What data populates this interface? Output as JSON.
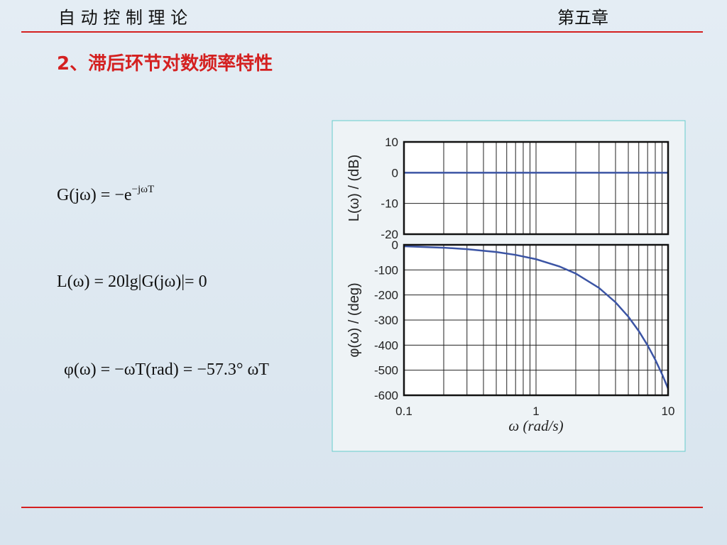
{
  "header": {
    "title": "自 动 控 制 理 论",
    "chapter": "第五章"
  },
  "section_title": "2、滞后环节对数频率特性",
  "formulas": [
    {
      "base": "G(jω) = −e",
      "sup": "−jωT"
    },
    {
      "text": "L(ω) = 20lg|G(jω)|= 0"
    },
    {
      "text": "φ(ω) = −ωT(rad) = −57.3° ωT"
    }
  ],
  "chart_data": [
    {
      "type": "line",
      "ylabel": "L(ω) / (dB)",
      "x": [
        0.1,
        10
      ],
      "values": [
        0,
        0
      ],
      "color": "#3b54a4",
      "xscale": "log",
      "xlim": [
        0.1,
        10
      ],
      "xminorticks": [
        0.2,
        0.3,
        0.4,
        0.5,
        0.6,
        0.7,
        0.8,
        0.9,
        2,
        3,
        4,
        5,
        6,
        7,
        8,
        9
      ],
      "xticks": [
        0.1,
        1,
        10
      ],
      "ylim": [
        -20,
        10
      ],
      "yticks": [
        10,
        0,
        -10,
        -20
      ],
      "grid": true
    },
    {
      "type": "line",
      "ylabel": "φ(ω) / (deg)",
      "xlabel": "ω (rad/s)",
      "x": [
        0.1,
        0.2,
        0.3,
        0.5,
        0.7,
        1,
        1.5,
        2,
        3,
        4,
        5,
        6,
        7,
        8,
        9,
        10
      ],
      "values": [
        -5.7,
        -11.5,
        -17.2,
        -28.7,
        -40.1,
        -57.3,
        -86,
        -114.6,
        -171.9,
        -229.2,
        -286.5,
        -343.8,
        -401.1,
        -458.4,
        -515.7,
        -573
      ],
      "color": "#3b54a4",
      "xscale": "log",
      "xlim": [
        0.1,
        10
      ],
      "xminorticks": [
        0.2,
        0.3,
        0.4,
        0.5,
        0.6,
        0.7,
        0.8,
        0.9,
        2,
        3,
        4,
        5,
        6,
        7,
        8,
        9
      ],
      "xticks": [
        0.1,
        1,
        10
      ],
      "ylim": [
        -600,
        0
      ],
      "yticks": [
        0,
        -100,
        -200,
        -300,
        -400,
        -500,
        -600
      ],
      "grid": true
    }
  ]
}
